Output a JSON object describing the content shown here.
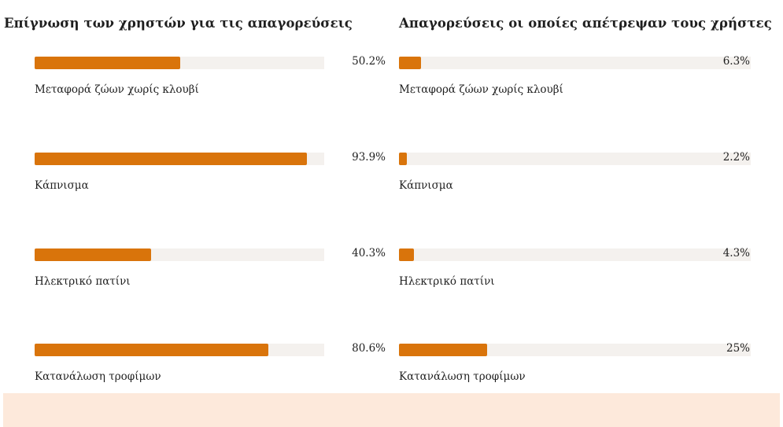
{
  "chart_data": [
    {
      "type": "bar",
      "orientation": "horizontal",
      "title": "Επίγνωση των χρηστών για τις απαγορεύσεις",
      "categories": [
        "Μεταφορά ζώων χωρίς κλουβί",
        "Κάπνισμα",
        "Ηλεκτρικό πατίνι",
        "Κατανάλωση τροφίμων"
      ],
      "values": [
        50.2,
        93.9,
        40.3,
        80.6
      ],
      "value_labels": [
        "50.2%",
        "93.9%",
        "40.3%",
        "80.6%"
      ],
      "xlim": [
        0,
        100
      ],
      "unit": "%",
      "bar_color": "#d9740b",
      "track_color": "#f4f1ee",
      "grid": false
    },
    {
      "type": "bar",
      "orientation": "horizontal",
      "title": "Απαγορεύσεις οι οποίες απέτρεψαν τους χρήστες",
      "categories": [
        "Μεταφορά ζώων χωρίς κλουβί",
        "Κάπνισμα",
        "Ηλεκτρικό πατίνι",
        "Κατανάλωση τροφίμων"
      ],
      "values": [
        6.3,
        2.2,
        4.3,
        25
      ],
      "value_labels": [
        "6.3%",
        "2.2%",
        "4.3%",
        "25%"
      ],
      "xlim": [
        0,
        100
      ],
      "unit": "%",
      "bar_color": "#d9740b",
      "track_color": "#f4f1ee",
      "grid": false
    }
  ],
  "footer": {
    "band_color": "#fde9db"
  }
}
